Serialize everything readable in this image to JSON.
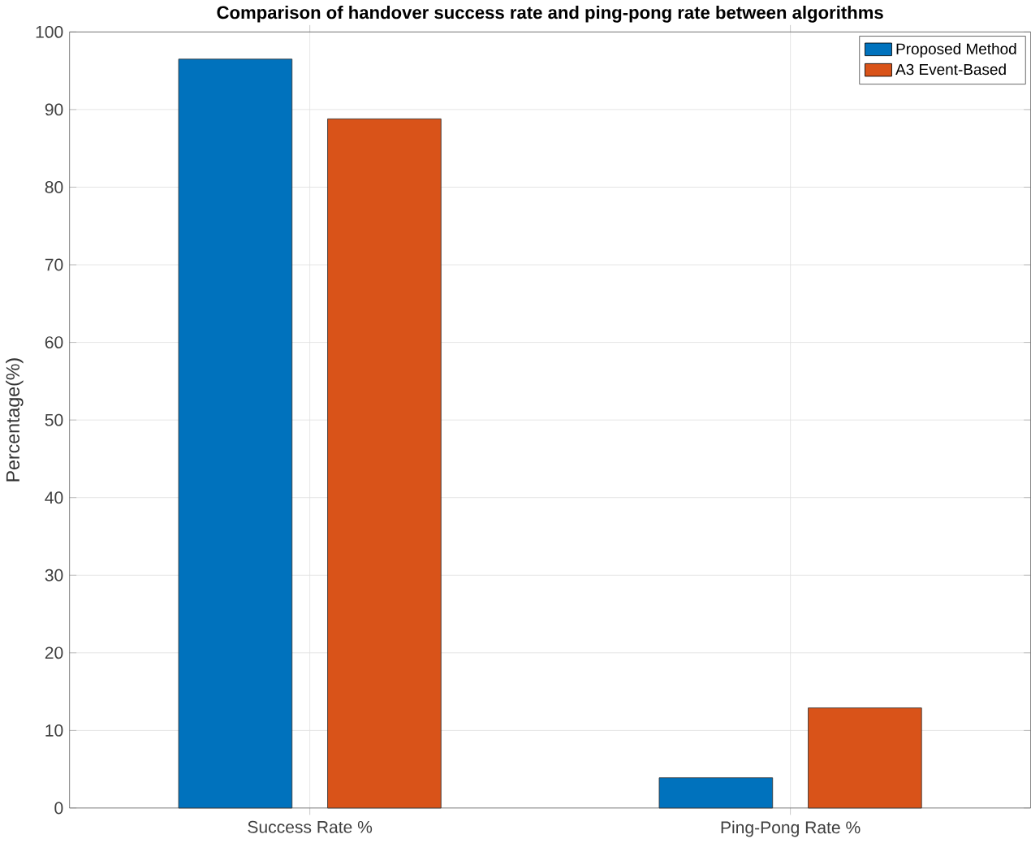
{
  "chart_data": {
    "type": "bar",
    "title": "Comparison of handover success rate and ping-pong rate between algorithms",
    "ylabel": "Percentage(%)",
    "categories": [
      "Success Rate %",
      "Ping-Pong Rate %"
    ],
    "series": [
      {
        "name": "Proposed Method",
        "color": "#0072bd",
        "values": [
          96.5,
          3.9
        ]
      },
      {
        "name": "A3 Event-Based",
        "color": "#d95319",
        "values": [
          88.8,
          12.9
        ]
      }
    ],
    "ylim": [
      0,
      100
    ],
    "yticks": [
      0,
      10,
      20,
      30,
      40,
      50,
      60,
      70,
      80,
      90,
      100
    ],
    "grid": true,
    "legend": "top right"
  }
}
